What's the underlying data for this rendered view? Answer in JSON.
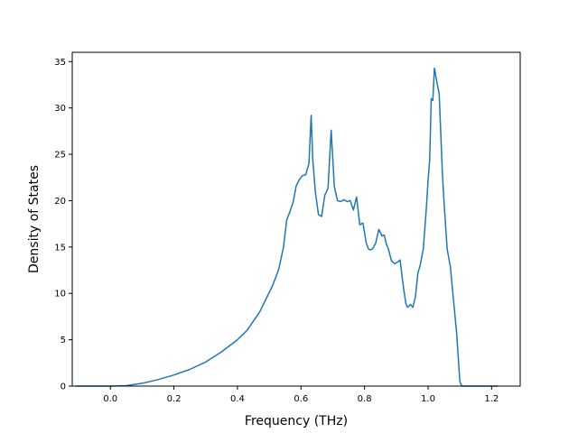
{
  "chart_data": {
    "type": "line",
    "title": "",
    "xlabel": "Frequency (THz)",
    "ylabel": "Density of States",
    "xlim": [
      -0.12,
      1.29
    ],
    "ylim": [
      0,
      36
    ],
    "grid": false,
    "legend": "none",
    "colors": {
      "line": "#1f77b4",
      "axis": "#000000",
      "background": "#ffffff"
    },
    "xticks": [
      0.0,
      0.2,
      0.4,
      0.6,
      0.8,
      1.0,
      1.2
    ],
    "xtick_labels": [
      "0.0",
      "0.2",
      "0.4",
      "0.6",
      "0.8",
      "1.0",
      "1.2"
    ],
    "yticks": [
      0,
      5,
      10,
      15,
      20,
      25,
      30,
      35
    ],
    "ytick_labels": [
      "0",
      "5",
      "10",
      "15",
      "20",
      "25",
      "30",
      "35"
    ],
    "series": [
      {
        "x": [
          -0.11,
          -0.05,
          0.0,
          0.05,
          0.1,
          0.15,
          0.2,
          0.25,
          0.3,
          0.35,
          0.4,
          0.43,
          0.45,
          0.47,
          0.49,
          0.51,
          0.53,
          0.545,
          0.555,
          0.565,
          0.575,
          0.585,
          0.595,
          0.605,
          0.615,
          0.625,
          0.632,
          0.637,
          0.645,
          0.655,
          0.665,
          0.675,
          0.685,
          0.695,
          0.705,
          0.715,
          0.725,
          0.735,
          0.745,
          0.755,
          0.765,
          0.775,
          0.785,
          0.795,
          0.805,
          0.812,
          0.818,
          0.825,
          0.835,
          0.845,
          0.855,
          0.862,
          0.868,
          0.875,
          0.885,
          0.895,
          0.905,
          0.912,
          0.92,
          0.93,
          0.935,
          0.945,
          0.952,
          0.96,
          0.968,
          0.975,
          0.985,
          0.995,
          1.0,
          1.005,
          1.01,
          1.015,
          1.02,
          1.025,
          1.035,
          1.045,
          1.05,
          1.06,
          1.07,
          1.08,
          1.09,
          1.1,
          1.105,
          1.11,
          1.12,
          1.15,
          1.22
        ],
        "y": [
          0,
          0,
          0,
          0.05,
          0.3,
          0.7,
          1.2,
          1.8,
          2.6,
          3.7,
          5.0,
          6.0,
          7.0,
          8.0,
          9.4,
          10.8,
          12.6,
          15.0,
          17.9,
          18.8,
          19.8,
          21.6,
          22.3,
          22.7,
          22.8,
          24.0,
          29.2,
          24.5,
          21.0,
          18.5,
          18.3,
          20.6,
          21.3,
          27.6,
          21.5,
          20.0,
          19.9,
          20.1,
          19.9,
          20.0,
          19.0,
          20.4,
          17.4,
          17.6,
          15.5,
          14.8,
          14.7,
          14.8,
          15.4,
          16.9,
          16.2,
          16.3,
          15.4,
          14.8,
          13.5,
          13.2,
          13.4,
          13.6,
          11.3,
          8.9,
          8.5,
          8.8,
          8.5,
          9.6,
          12.2,
          13.0,
          14.8,
          19.4,
          22.2,
          24.3,
          31.0,
          30.8,
          34.3,
          33.3,
          31.5,
          23.0,
          20.0,
          14.8,
          12.9,
          9.3,
          5.7,
          0.5,
          0.1,
          0.0,
          0.0,
          0.0,
          0.0
        ]
      }
    ]
  }
}
